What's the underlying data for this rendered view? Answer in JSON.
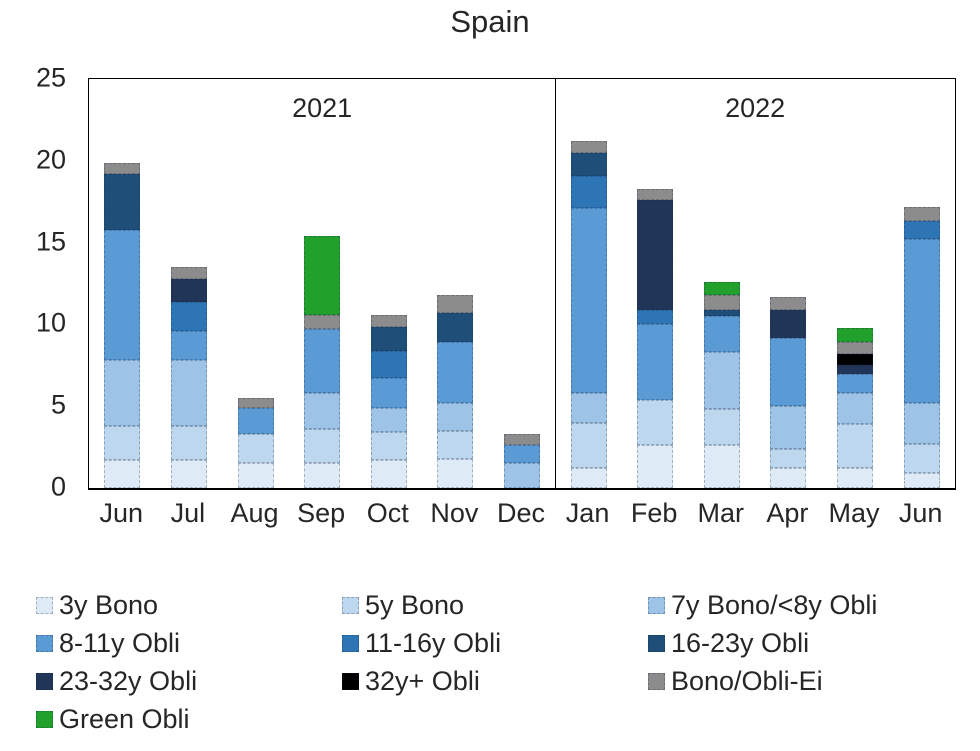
{
  "chart_data": {
    "type": "bar",
    "variant": "stacked",
    "title": "Spain",
    "ylim": [
      0,
      25
    ],
    "y_ticks": [
      0,
      5,
      10,
      15,
      20,
      25
    ],
    "grid": false,
    "legend_position": "bottom",
    "categories": [
      "Jun",
      "Jul",
      "Aug",
      "Sep",
      "Oct",
      "Nov",
      "Dec",
      "Jan",
      "Feb",
      "Mar",
      "Apr",
      "May",
      "Jun"
    ],
    "year_groups": [
      {
        "label": "2021",
        "span": 7
      },
      {
        "label": "2022",
        "span": 6
      }
    ],
    "series": [
      {
        "name": "3y Bono",
        "color": "#DEEBF7",
        "values": [
          1.7,
          1.7,
          1.5,
          1.5,
          1.7,
          1.8,
          0,
          1.2,
          2.6,
          2.6,
          1.2,
          1.2,
          0.9
        ]
      },
      {
        "name": "5y Bono",
        "color": "#BDD7EE",
        "values": [
          2.1,
          2.1,
          1.8,
          2.1,
          1.7,
          1.7,
          0,
          2.8,
          2.8,
          2.2,
          1.2,
          2.7,
          1.8
        ]
      },
      {
        "name": "7y Bono/<8y Obli",
        "color": "#9DC3E6",
        "values": [
          4.0,
          4.0,
          0,
          2.2,
          1.5,
          1.7,
          1.5,
          1.8,
          0,
          3.5,
          2.6,
          1.9,
          2.5
        ]
      },
      {
        "name": "8-11y Obli",
        "color": "#5B9BD5",
        "values": [
          8.0,
          1.8,
          1.6,
          3.9,
          1.8,
          3.7,
          1.1,
          11.3,
          4.6,
          2.2,
          4.2,
          1.2,
          10.0
        ]
      },
      {
        "name": "11-16y Obli",
        "color": "#2E75B6",
        "values": [
          0,
          1.8,
          0,
          0,
          1.65,
          0,
          0,
          2.0,
          0.9,
          0,
          0,
          0,
          1.1
        ]
      },
      {
        "name": "16-23y Obli",
        "color": "#1F4E79",
        "values": [
          3.4,
          0,
          0,
          0,
          1.5,
          1.8,
          0,
          1.4,
          0,
          0.4,
          0,
          0,
          0
        ]
      },
      {
        "name": "23-32y Obli",
        "color": "#203557",
        "values": [
          0,
          1.4,
          0,
          0,
          0,
          0,
          0,
          0,
          6.7,
          0,
          1.7,
          0.5,
          0
        ]
      },
      {
        "name": "32y+ Obli",
        "color": "#000000",
        "values": [
          0,
          0,
          0,
          0,
          0,
          0,
          0,
          0,
          0,
          0,
          0,
          0.7,
          0
        ]
      },
      {
        "name": "Bono/Obli-Ei",
        "color": "#8C8C8C",
        "values": [
          0.7,
          0.7,
          0.6,
          0.85,
          0.7,
          1.1,
          0.7,
          0.7,
          0.7,
          0.9,
          0.8,
          0.7,
          0.9
        ]
      },
      {
        "name": "Green Obli",
        "color": "#22A02C",
        "values": [
          0,
          0,
          0,
          4.85,
          0,
          0,
          0,
          0,
          0,
          0.8,
          0,
          0.9,
          0
        ]
      }
    ]
  }
}
